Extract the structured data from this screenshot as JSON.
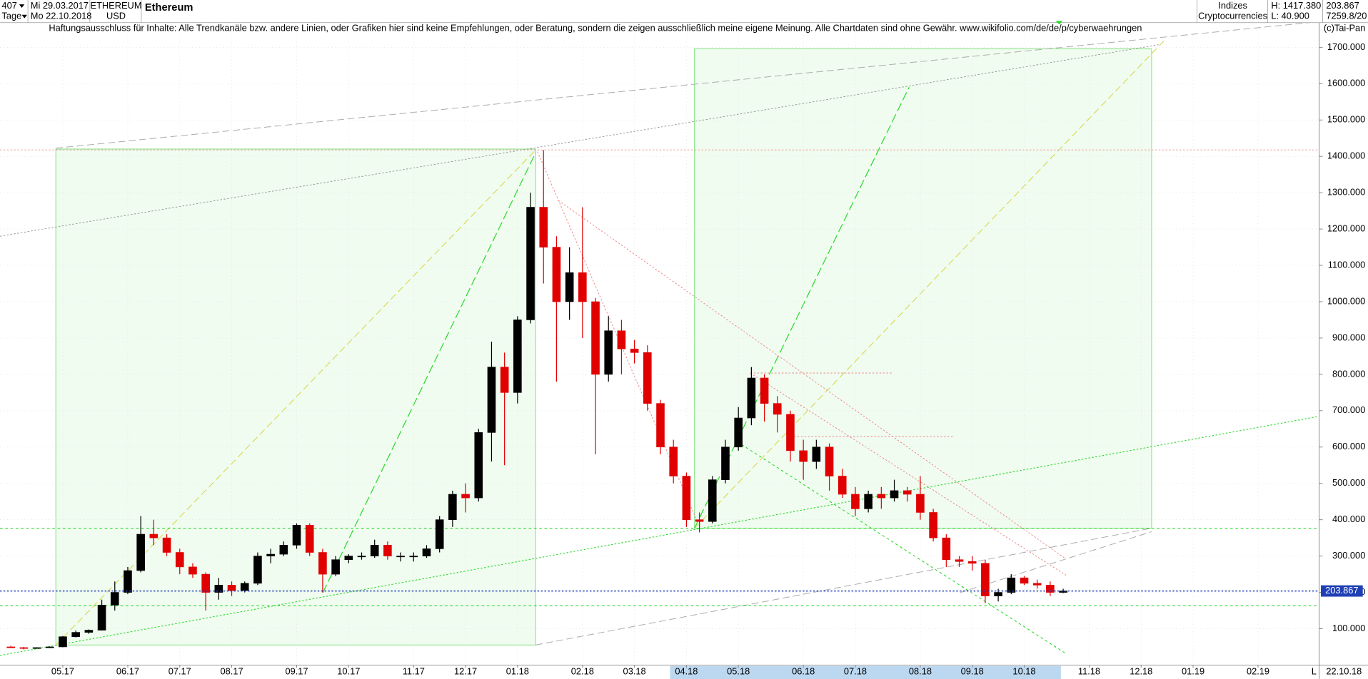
{
  "header": {
    "count": "407",
    "period": "Tage",
    "start_date": "Mi 29.03.2017",
    "end_date": "Mo 22.10.2018",
    "symbol": "ETHEREUM",
    "currency": "USD",
    "group": "Indizes",
    "subgroup": "Cryptocurrencies",
    "high": "H: 1417.380",
    "low": "L: 40.900",
    "last": "203.867",
    "extra": "7259.8/20",
    "disclaimer": "Haftungsausschluss für Inhalte: Alle Trendkanäle bzw. andere Linien, oder Grafiken hier sind keine Empfehlungen, oder Beratung, sondern die zeigen ausschließlich meine eigene Meinung. Alle Chartdaten sind ohne Gewähr.  www.wikifolio.com/de/de/p/cyberwaehrungen",
    "copyright": "(c)Tai-Pan"
  },
  "footer": {
    "scale": "L",
    "date": "22.10.18"
  },
  "chart_data": {
    "type": "candlestick",
    "title": "Ethereum",
    "categories": [
      null,
      null,
      null,
      null,
      "05.17",
      null,
      null,
      null,
      null,
      "06.17",
      null,
      null,
      null,
      "07.17",
      null,
      null,
      null,
      "08.17",
      null,
      null,
      null,
      null,
      "09.17",
      null,
      null,
      null,
      "10.17",
      null,
      null,
      null,
      null,
      "11.17",
      null,
      null,
      null,
      "12.17",
      null,
      null,
      null,
      "01.18",
      null,
      null,
      null,
      null,
      "02.18",
      null,
      null,
      null,
      "03.18",
      null,
      null,
      null,
      "04.18",
      null,
      null,
      null,
      "05.18",
      null,
      null,
      null,
      null,
      "06.18",
      null,
      null,
      null,
      "07.18",
      null,
      null,
      null,
      null,
      "08.18",
      null,
      null,
      null,
      "09.18",
      null,
      null,
      null,
      "10.18",
      null,
      null,
      null,
      null,
      "11.18",
      null,
      null,
      null,
      "12.18",
      null,
      null,
      null,
      "01.19",
      null,
      null,
      null,
      null,
      "02.19",
      null,
      null,
      null,
      null
    ],
    "open": [
      50,
      48,
      46,
      48,
      50,
      78,
      90,
      96,
      165,
      200,
      260,
      360,
      350,
      310,
      270,
      250,
      200,
      220,
      205,
      225,
      300,
      305,
      330,
      385,
      310,
      250,
      290,
      300,
      300,
      330,
      300,
      300,
      300,
      320,
      400,
      470,
      460,
      640,
      820,
      750,
      950,
      1260,
      1150,
      1000,
      1080,
      1000,
      800,
      920,
      870,
      860,
      720,
      600,
      520,
      400,
      395,
      510,
      600,
      680,
      790,
      720,
      690,
      590,
      560,
      600,
      520,
      470,
      430,
      470,
      460,
      480,
      470,
      420,
      350,
      290,
      285,
      280,
      190,
      200,
      240,
      225,
      220,
      200,
      null,
      null,
      null,
      null,
      null,
      null,
      null,
      null,
      null,
      null,
      null,
      null,
      null,
      null,
      null,
      null,
      null,
      null,
      null
    ],
    "high": [
      53,
      50,
      49,
      51,
      80,
      95,
      98,
      180,
      230,
      270,
      410,
      400,
      360,
      320,
      280,
      255,
      240,
      230,
      230,
      310,
      320,
      340,
      390,
      390,
      320,
      300,
      305,
      310,
      345,
      340,
      310,
      310,
      330,
      410,
      480,
      500,
      650,
      890,
      860,
      960,
      1300,
      1417.38,
      1180,
      1150,
      1260,
      1010,
      960,
      950,
      895,
      880,
      730,
      620,
      530,
      420,
      520,
      620,
      710,
      820,
      800,
      740,
      700,
      620,
      620,
      610,
      540,
      490,
      480,
      490,
      510,
      490,
      520,
      430,
      360,
      300,
      300,
      290,
      210,
      250,
      245,
      235,
      230,
      210,
      null,
      null,
      null,
      null,
      null,
      null,
      null,
      null,
      null,
      null,
      null,
      null,
      null,
      null,
      null,
      null,
      null,
      null,
      null
    ],
    "low": [
      47,
      43,
      45,
      47,
      49,
      76,
      86,
      95,
      150,
      195,
      255,
      330,
      300,
      250,
      240,
      150,
      180,
      190,
      200,
      220,
      280,
      300,
      320,
      300,
      200,
      245,
      280,
      290,
      295,
      290,
      285,
      285,
      295,
      310,
      380,
      420,
      450,
      560,
      550,
      720,
      940,
      1050,
      780,
      950,
      900,
      580,
      780,
      800,
      830,
      700,
      580,
      500,
      380,
      365,
      390,
      500,
      590,
      660,
      670,
      640,
      560,
      510,
      540,
      480,
      460,
      410,
      420,
      430,
      450,
      450,
      400,
      340,
      270,
      270,
      260,
      170,
      175,
      195,
      220,
      210,
      190,
      198,
      null,
      null,
      null,
      null,
      null,
      null,
      null,
      null,
      null,
      null,
      null,
      null,
      null,
      null,
      null,
      null,
      null,
      null,
      null
    ],
    "close": [
      48,
      46,
      48,
      50,
      78,
      90,
      96,
      165,
      200,
      260,
      360,
      350,
      310,
      270,
      250,
      200,
      220,
      205,
      225,
      300,
      305,
      330,
      385,
      310,
      250,
      290,
      300,
      300,
      330,
      300,
      300,
      300,
      320,
      400,
      470,
      460,
      640,
      820,
      750,
      950,
      1260,
      1150,
      1000,
      1080,
      1000,
      800,
      920,
      870,
      860,
      720,
      600,
      520,
      400,
      395,
      510,
      600,
      680,
      790,
      720,
      690,
      590,
      560,
      600,
      520,
      470,
      430,
      470,
      460,
      480,
      470,
      420,
      350,
      290,
      285,
      280,
      190,
      200,
      240,
      225,
      220,
      200,
      203.867,
      null,
      null,
      null,
      null,
      null,
      null,
      null,
      null,
      null,
      null,
      null,
      null,
      null,
      null,
      null,
      null,
      null,
      null,
      null
    ],
    "up_color": "#000000",
    "down_color": "#e00000",
    "last_price": {
      "value": 203.867,
      "label": "203.867"
    },
    "last_price_color": "#1f3fb5",
    "ylim": [
      0,
      1760
    ],
    "yticks": [
      {
        "value": 100,
        "label": "100.000"
      },
      {
        "value": 200,
        "label": "200.000"
      },
      {
        "value": 300,
        "label": "300.000"
      },
      {
        "value": 400,
        "label": "400.000"
      },
      {
        "value": 500,
        "label": "500.000"
      },
      {
        "value": 600,
        "label": "600.000"
      },
      {
        "value": 700,
        "label": "700.000"
      },
      {
        "value": 800,
        "label": "800.000"
      },
      {
        "value": 900,
        "label": "900.000"
      },
      {
        "value": 1000,
        "label": "1000.000"
      },
      {
        "value": 1100,
        "label": "1100.000"
      },
      {
        "value": 1200,
        "label": "1200.000"
      },
      {
        "value": 1300,
        "label": "1300.000"
      },
      {
        "value": 1400,
        "label": "1400.000"
      },
      {
        "value": 1500,
        "label": "1500.000"
      },
      {
        "value": 1600,
        "label": "1600.000"
      },
      {
        "value": 1700,
        "label": "1700.000"
      }
    ],
    "grid": true
  }
}
